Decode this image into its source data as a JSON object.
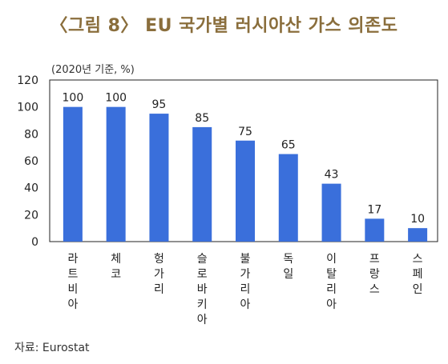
{
  "title": "〈그림 8〉 EU 국가별 러시아산 가스 의존도",
  "unit_note": "(2020년 기준, %)",
  "source": "자료: Eurostat",
  "colors": {
    "bar": "#3a6fdb",
    "title": "#8a6e3c",
    "frame": "#222222"
  },
  "chart_data": {
    "type": "bar",
    "title": "〈그림 8〉 EU 국가별 러시아산 가스 의존도",
    "xlabel": "",
    "ylabel": "(2020년 기준, %)",
    "categories": [
      "라트비아",
      "체코",
      "헝가리",
      "슬로바키아",
      "불가리아",
      "독일",
      "이탈리아",
      "프랑스",
      "스페인"
    ],
    "values": [
      100,
      100,
      95,
      85,
      75,
      65,
      43,
      17,
      10
    ],
    "ylim": [
      0,
      120
    ],
    "yticks": [
      0,
      20,
      40,
      60,
      80,
      100,
      120
    ],
    "grid": false,
    "legend": "none"
  }
}
